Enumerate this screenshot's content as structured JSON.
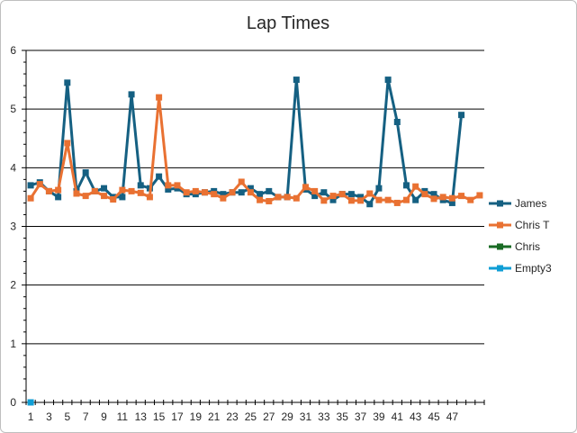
{
  "chart_data": {
    "type": "line",
    "title": "Lap Times",
    "xlabel": "",
    "ylabel": "",
    "ylim": [
      0,
      6
    ],
    "yticks": [
      "0",
      "1",
      "2",
      "3",
      "4",
      "5",
      "6"
    ],
    "x_categories": [
      "1",
      "2",
      "3",
      "4",
      "5",
      "6",
      "7",
      "8",
      "9",
      "10",
      "11",
      "12",
      "13",
      "14",
      "15",
      "16",
      "17",
      "18",
      "19",
      "20",
      "21",
      "22",
      "23",
      "24",
      "25",
      "26",
      "27",
      "28",
      "29",
      "30",
      "31",
      "32",
      "33",
      "34",
      "35",
      "36",
      "37",
      "38",
      "39",
      "40",
      "41",
      "42",
      "43",
      "44",
      "45",
      "46",
      "47",
      "48",
      "49",
      "50"
    ],
    "x_tick_labels_shown": [
      "1",
      "3",
      "5",
      "7",
      "9",
      "11",
      "13",
      "15",
      "17",
      "19",
      "21",
      "23",
      "25",
      "27",
      "29",
      "31",
      "33",
      "35",
      "37",
      "39",
      "41",
      "43",
      "45",
      "47"
    ],
    "grid": "horizontal major",
    "legend_position": "right",
    "series": [
      {
        "name": "James",
        "color": "#156082",
        "values": [
          3.7,
          3.75,
          3.6,
          3.5,
          5.45,
          3.6,
          3.92,
          3.6,
          3.65,
          3.5,
          3.5,
          5.25,
          3.7,
          3.65,
          3.85,
          3.63,
          3.65,
          3.55,
          3.55,
          3.58,
          3.6,
          3.55,
          3.58,
          3.58,
          3.65,
          3.55,
          3.6,
          3.5,
          3.5,
          5.5,
          3.63,
          3.52,
          3.58,
          3.45,
          3.55,
          3.55,
          3.5,
          3.38,
          3.65,
          5.5,
          4.78,
          3.7,
          3.45,
          3.6,
          3.55,
          3.45,
          3.4,
          4.9,
          null,
          null
        ]
      },
      {
        "name": "Chris T",
        "color": "#E97132",
        "values": [
          3.48,
          3.72,
          3.6,
          3.62,
          4.42,
          3.56,
          3.52,
          3.6,
          3.52,
          3.46,
          3.62,
          3.6,
          3.57,
          3.5,
          5.2,
          3.7,
          3.7,
          3.58,
          3.6,
          3.58,
          3.55,
          3.48,
          3.58,
          3.76,
          3.58,
          3.45,
          3.43,
          3.5,
          3.5,
          3.48,
          3.67,
          3.6,
          3.44,
          3.52,
          3.55,
          3.44,
          3.44,
          3.56,
          3.45,
          3.45,
          3.4,
          3.45,
          3.68,
          3.55,
          3.47,
          3.5,
          3.48,
          3.52,
          3.45,
          3.53
        ]
      },
      {
        "name": "Chris",
        "color": "#196B24",
        "values": []
      },
      {
        "name": "Empty3",
        "color": "#0F9ED5",
        "values": [
          0
        ]
      }
    ]
  }
}
